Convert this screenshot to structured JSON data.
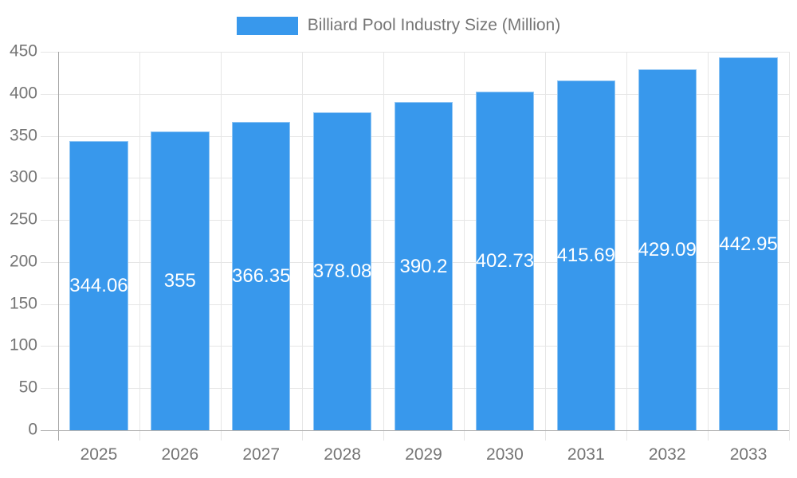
{
  "legend": {
    "label": "Billiard Pool Industry Size (Million)"
  },
  "chart_data": {
    "type": "bar",
    "title": "Billiard Pool Industry Size (Million)",
    "categories": [
      "2025",
      "2026",
      "2027",
      "2028",
      "2029",
      "2030",
      "2031",
      "2032",
      "2033"
    ],
    "values": [
      344.06,
      355,
      366.35,
      378.08,
      390.2,
      402.73,
      415.69,
      429.09,
      442.95
    ],
    "bar_labels": [
      "344.06",
      "355",
      "366.35",
      "378.08",
      "390.2",
      "402.73",
      "415.69",
      "429.09",
      "442.95"
    ],
    "xlabel": "",
    "ylabel": "",
    "ylim": [
      0,
      450
    ],
    "y_ticks": [
      0,
      50,
      100,
      150,
      200,
      250,
      300,
      350,
      400,
      450
    ],
    "grid": "on",
    "legend_position": "top-center",
    "colors": {
      "bar": "#3898ec",
      "grid": "#e6e6e6",
      "axis": "#b3b3b3",
      "text": "#757575",
      "bar_label": "#ffffff"
    }
  }
}
